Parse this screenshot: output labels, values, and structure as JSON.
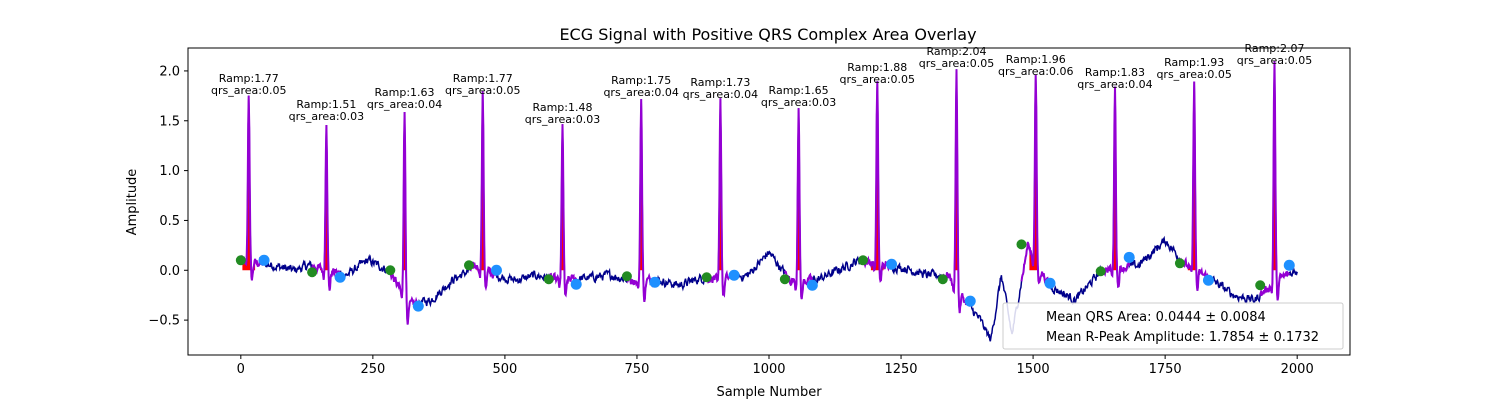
{
  "chart_data": {
    "type": "line",
    "title": "ECG Signal with Positive QRS Complex Area Overlay",
    "xlabel": "Sample Number",
    "ylabel": "Amplitude",
    "xlim": [
      -100,
      2100
    ],
    "ylim": [
      -0.85,
      2.23
    ],
    "xticks": [
      0,
      250,
      500,
      750,
      1000,
      1250,
      1500,
      1750,
      2000
    ],
    "yticks": [
      -0.5,
      0.0,
      0.5,
      1.0,
      1.5,
      2.0
    ],
    "xtick_labels": [
      "0",
      "250",
      "500",
      "750",
      "1000",
      "1250",
      "1500",
      "1750",
      "2000"
    ],
    "ytick_labels": [
      "−0.5",
      "0.0",
      "0.5",
      "1.0",
      "1.5",
      "2.0"
    ],
    "grid": false,
    "colors": {
      "signal": "#00008b",
      "qrs_segment": "#9400d3",
      "qrs_area": "#ff0000",
      "q_onset": "#228b22",
      "s_offset": "#1e90ff"
    },
    "beats": [
      {
        "r_x": 15,
        "r_amp": 1.77,
        "qrs_area": 0.05,
        "q_x": 0,
        "q_y": 0.1,
        "s_x": 44,
        "s_y": 0.1,
        "ann_ramp": "Ramp:1.77",
        "ann_area": "qrs_area:0.05"
      },
      {
        "r_x": 162,
        "r_amp": 1.51,
        "qrs_area": 0.03,
        "q_x": 135,
        "q_y": -0.02,
        "s_x": 188,
        "s_y": -0.07,
        "ann_ramp": "Ramp:1.51",
        "ann_area": "qrs_area:0.03"
      },
      {
        "r_x": 310,
        "r_amp": 1.63,
        "qrs_area": 0.04,
        "q_x": 283,
        "q_y": 0.0,
        "s_x": 336,
        "s_y": -0.36,
        "ann_ramp": "Ramp:1.63",
        "ann_area": "qrs_area:0.04"
      },
      {
        "r_x": 458,
        "r_amp": 1.77,
        "qrs_area": 0.05,
        "q_x": 432,
        "q_y": 0.05,
        "s_x": 484,
        "s_y": 0.0,
        "ann_ramp": "Ramp:1.77",
        "ann_area": "qrs_area:0.05"
      },
      {
        "r_x": 609,
        "r_amp": 1.48,
        "qrs_area": 0.03,
        "q_x": 583,
        "q_y": -0.09,
        "s_x": 635,
        "s_y": -0.14,
        "ann_ramp": "Ramp:1.48",
        "ann_area": "qrs_area:0.03"
      },
      {
        "r_x": 758,
        "r_amp": 1.75,
        "qrs_area": 0.04,
        "q_x": 731,
        "q_y": -0.06,
        "s_x": 784,
        "s_y": -0.12,
        "ann_ramp": "Ramp:1.75",
        "ann_area": "qrs_area:0.04"
      },
      {
        "r_x": 908,
        "r_amp": 1.73,
        "qrs_area": 0.04,
        "q_x": 882,
        "q_y": -0.07,
        "s_x": 934,
        "s_y": -0.05,
        "ann_ramp": "Ramp:1.73",
        "ann_area": "qrs_area:0.04"
      },
      {
        "r_x": 1056,
        "r_amp": 1.65,
        "qrs_area": 0.03,
        "q_x": 1030,
        "q_y": -0.09,
        "s_x": 1082,
        "s_y": -0.15,
        "ann_ramp": "Ramp:1.65",
        "ann_area": "qrs_area:0.03"
      },
      {
        "r_x": 1205,
        "r_amp": 1.88,
        "qrs_area": 0.05,
        "q_x": 1178,
        "q_y": 0.1,
        "s_x": 1232,
        "s_y": 0.06,
        "ann_ramp": "Ramp:1.88",
        "ann_area": "qrs_area:0.05"
      },
      {
        "r_x": 1355,
        "r_amp": 2.04,
        "qrs_area": 0.05,
        "q_x": 1329,
        "q_y": -0.09,
        "s_x": 1381,
        "s_y": -0.31,
        "ann_ramp": "Ramp:2.04",
        "ann_area": "qrs_area:0.05"
      },
      {
        "r_x": 1505,
        "r_amp": 1.96,
        "qrs_area": 0.06,
        "q_x": 1478,
        "q_y": 0.26,
        "s_x": 1532,
        "s_y": -0.13,
        "ann_ramp": "Ramp:1.96",
        "ann_area": "qrs_area:0.06"
      },
      {
        "r_x": 1655,
        "r_amp": 1.83,
        "qrs_area": 0.04,
        "q_x": 1628,
        "q_y": -0.01,
        "s_x": 1682,
        "s_y": 0.13,
        "ann_ramp": "Ramp:1.83",
        "ann_area": "qrs_area:0.04"
      },
      {
        "r_x": 1805,
        "r_amp": 1.93,
        "qrs_area": 0.05,
        "q_x": 1778,
        "q_y": 0.07,
        "s_x": 1832,
        "s_y": -0.1,
        "ann_ramp": "Ramp:1.93",
        "ann_area": "qrs_area:0.05"
      },
      {
        "r_x": 1957,
        "r_amp": 2.07,
        "qrs_area": 0.05,
        "q_x": 1930,
        "q_y": -0.15,
        "s_x": 1985,
        "s_y": 0.05,
        "ann_ramp": "Ramp:2.07",
        "ann_area": "qrs_area:0.05"
      }
    ],
    "baseline_profile": {
      "x": [
        0,
        60,
        100,
        130,
        200,
        240,
        280,
        320,
        360,
        400,
        450,
        480,
        520,
        560,
        600,
        650,
        700,
        740,
        790,
        830,
        870,
        920,
        960,
        1000,
        1040,
        1090,
        1130,
        1170,
        1220,
        1260,
        1300,
        1340,
        1370,
        1400,
        1420,
        1440,
        1460,
        1490,
        1530,
        1580,
        1630,
        1700,
        1750,
        1790,
        1840,
        1880,
        1920,
        1960,
        2000
      ],
      "y": [
        0.1,
        0.05,
        0.0,
        0.05,
        -0.05,
        0.1,
        0.0,
        -0.35,
        -0.3,
        -0.1,
        0.05,
        -0.05,
        -0.1,
        -0.05,
        -0.1,
        -0.08,
        -0.05,
        -0.1,
        -0.1,
        -0.15,
        -0.08,
        -0.08,
        -0.05,
        0.18,
        -0.1,
        -0.1,
        0.0,
        0.1,
        0.05,
        0.02,
        -0.05,
        -0.05,
        -0.3,
        -0.5,
        -0.7,
        -0.05,
        -0.65,
        0.25,
        -0.15,
        -0.3,
        0.0,
        0.05,
        0.3,
        0.05,
        -0.1,
        -0.25,
        -0.3,
        -0.1,
        0.0
      ]
    },
    "legend": {
      "position": "lower right",
      "entries": [
        "Mean QRS Area: 0.0444 ± 0.0084",
        "Mean R-Peak Amplitude: 1.7854 ± 0.1732"
      ]
    }
  }
}
